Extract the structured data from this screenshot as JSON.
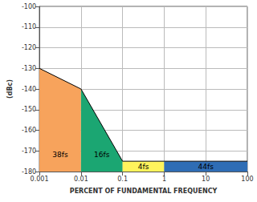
{
  "chart_data": {
    "type": "area",
    "x_label": "PERCENT OF FUNDAMENTAL FREQUENCY",
    "y_label": "(dBc)",
    "log": "x",
    "grid": true,
    "xlim": [
      0.001,
      100
    ],
    "xticks": [
      0.001,
      0.01,
      0.1,
      1,
      10,
      100
    ],
    "ylim": [
      -180,
      -100
    ],
    "yticks": [
      -180,
      -170,
      -160,
      -150,
      -140,
      -130,
      -120,
      -110,
      -100
    ],
    "series": [
      {
        "name": "38fs",
        "color": "#f7a35c",
        "x": [
          0.001,
          0.01
        ],
        "values": [
          -130,
          -140
        ]
      },
      {
        "name": "16fs",
        "color": "#1ba672",
        "x": [
          0.01,
          0.1
        ],
        "values": [
          -140,
          -175
        ]
      },
      {
        "name": "4fs",
        "color": "#fff35c",
        "x": [
          0.1,
          1
        ],
        "values": [
          -175,
          -175
        ]
      },
      {
        "name": "44fs",
        "color": "#2f6db5",
        "x": [
          1,
          100
        ],
        "values": [
          -175,
          -175
        ]
      }
    ]
  }
}
